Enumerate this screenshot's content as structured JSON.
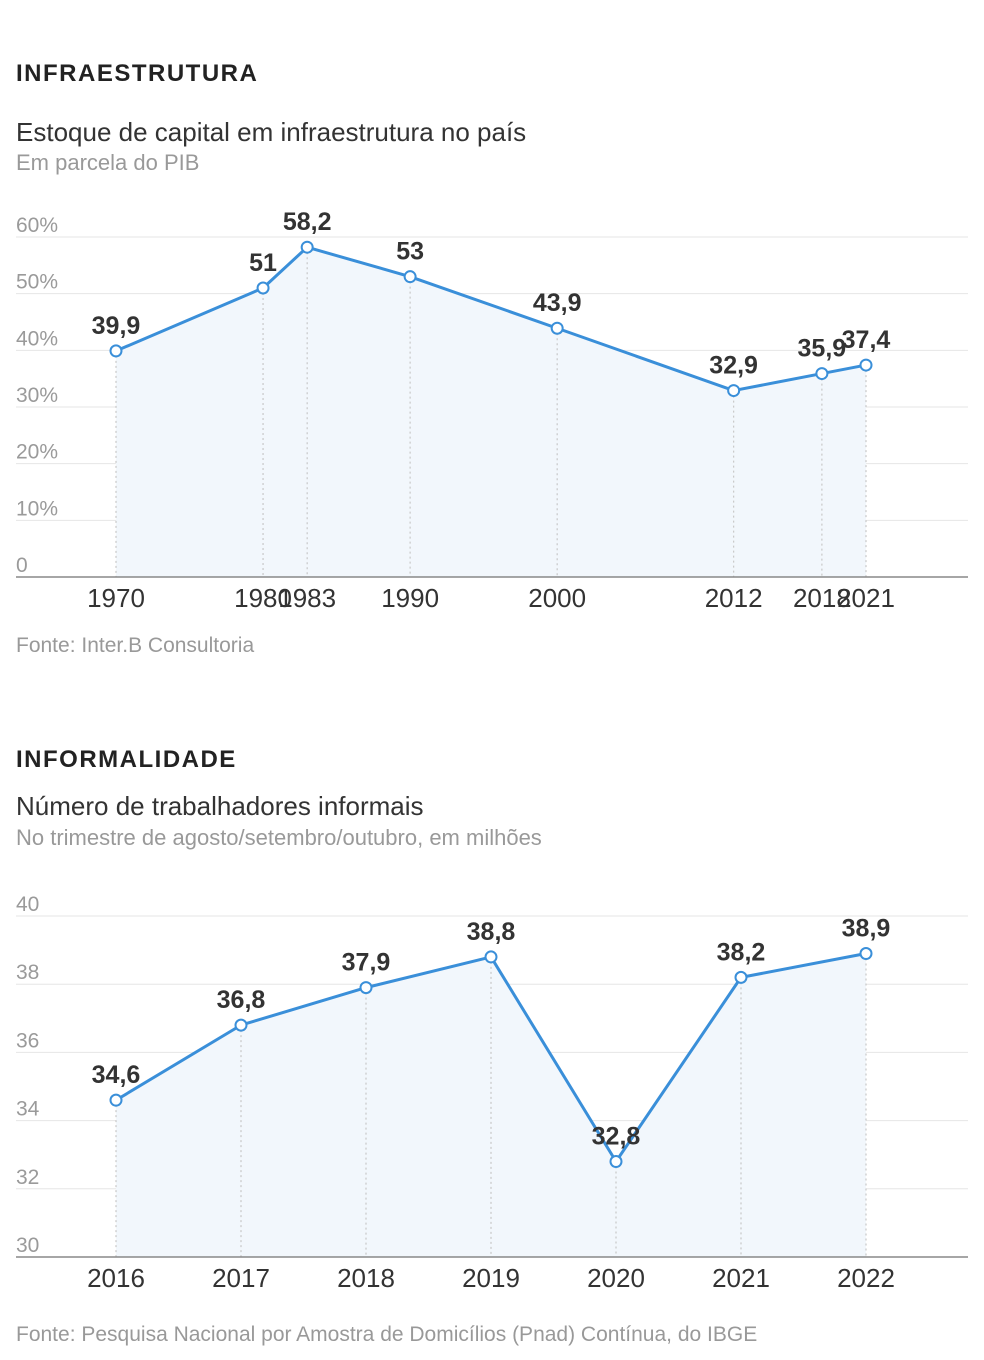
{
  "chart_data": [
    {
      "type": "area",
      "kicker": "INFRAESTRUTURA",
      "title": "Estoque de capital em infraestrutura no país",
      "subtitle": "Em parcela do PIB",
      "source": "Fonte: Inter.B Consultoria",
      "x": [
        1970,
        1980,
        1983,
        1990,
        2000,
        2012,
        2018,
        2021
      ],
      "x_labels": [
        "1970",
        "1980",
        "1983",
        "1990",
        "2000",
        "2012",
        "2018",
        "2021"
      ],
      "values": [
        39.9,
        51,
        58.2,
        53,
        43.9,
        32.9,
        35.9,
        37.4
      ],
      "data_labels": [
        "39,9",
        "51",
        "58,2",
        "53",
        "43,9",
        "32,9",
        "35,9",
        "37,4"
      ],
      "y_ticks": [
        0,
        10,
        20,
        30,
        40,
        50,
        60
      ],
      "y_tick_labels": [
        "0",
        "10%",
        "20%",
        "30%",
        "40%",
        "50%",
        "60%"
      ],
      "ylim": [
        0,
        60
      ],
      "grid": true,
      "line_color": "#3a8fd9",
      "fill_color": "#f2f7fc"
    },
    {
      "type": "area",
      "kicker": "INFORMALIDADE",
      "title": "Número de trabalhadores informais",
      "subtitle": "No trimestre de agosto/setembro/outubro, em milhões",
      "source": "Fonte: Pesquisa Nacional por Amostra de Domicílios (Pnad) Contínua, do IBGE",
      "x": [
        2016,
        2017,
        2018,
        2019,
        2020,
        2021,
        2022
      ],
      "x_labels": [
        "2016",
        "2017",
        "2018",
        "2019",
        "2020",
        "2021",
        "2022"
      ],
      "values": [
        34.6,
        36.8,
        37.9,
        38.8,
        32.8,
        38.2,
        38.9
      ],
      "data_labels": [
        "34,6",
        "36,8",
        "37,9",
        "38,8",
        "32,8",
        "38,2",
        "38,9"
      ],
      "y_ticks": [
        30,
        32,
        34,
        36,
        38,
        40
      ],
      "y_tick_labels": [
        "30",
        "32",
        "34",
        "36",
        "38",
        "40"
      ],
      "ylim": [
        30,
        40
      ],
      "grid": true,
      "line_color": "#3a8fd9",
      "fill_color": "#f2f7fc"
    }
  ]
}
